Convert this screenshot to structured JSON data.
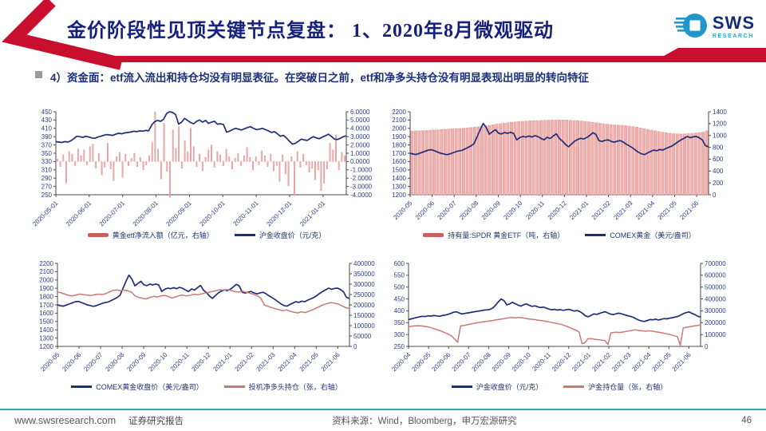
{
  "page": {
    "title": "金价阶段性见顶关键节点复盘：  1、2020年8月微观驱动",
    "subtitle": "4）资金面：etf流入流出和持仓均没有明显表征。在突破日之前，etf和净多头持仓没有明显表现出明显的转向特征",
    "logo": {
      "text": "SWS",
      "subtext": "RESEARCH"
    },
    "footer": {
      "site": "www.swsresearch.com",
      "report_type": "证券研究报告",
      "source": "资料来源：Wind，Bloomberg，申万宏源研究",
      "page_number": "46"
    },
    "colors": {
      "accent_red": "#c8102e",
      "navy": "#15217c",
      "footer_teal": "#35a6b4",
      "bar_fill": "#efb0ae",
      "bar_edge": "#e0908d",
      "line_blue": "#1f2d7b",
      "line_red": "#cb7975",
      "axis_text": "#2b3b85"
    }
  },
  "chart_data": [
    {
      "type": "bar",
      "name": "gold-etf-netflow-vs-shfe-gold",
      "left_axis": {
        "min": 250,
        "max": 450,
        "step": 20,
        "decimals": 0
      },
      "right_axis": {
        "min": -4,
        "max": 6,
        "step": 1,
        "decimals": 4
      },
      "x_labels": [
        "2020-05-01",
        "2020-06-01",
        "2020-07-01",
        "2020-08-01",
        "2020-09-01",
        "2020-10-01",
        "2020-11-01",
        "2020-12-01",
        "2021-01-01"
      ],
      "label_span": 0.92,
      "margins": {
        "mL": 30,
        "mR": 44
      },
      "legend": [
        {
          "label": "黄金etf净流入额（亿元，右轴）",
          "type": "bar",
          "color": "#c9605b"
        },
        {
          "label": "沪金收盘价（元/克）",
          "type": "line",
          "color": "#1f2d7b"
        }
      ],
      "series": [
        {
          "name": "黄金etf净流入额",
          "type": "bar",
          "axis": "right",
          "fill": "#efb0ae",
          "edge": "#e0908d",
          "bar_frac": 0.35,
          "values": [
            0.3,
            -0.6,
            0.8,
            -2.6,
            1.2,
            0.9,
            -0.5,
            1.5,
            0.7,
            1.4,
            -0.4,
            1.8,
            2.1,
            -0.8,
            1.0,
            -1.6,
            -0.7,
            2.2,
            -0.9,
            -2.3,
            0.6,
            1.1,
            -1.9,
            0.9,
            -0.5,
            0.4,
            1.0,
            -0.6,
            0.5,
            -1.0,
            -0.4,
            0.7,
            2.3,
            6.0,
            1.5,
            -2.1,
            4.6,
            -1.2,
            -4.3,
            3.8,
            1.6,
            4.2,
            -0.8,
            2.5,
            1.2,
            4.0,
            1.8,
            -0.6,
            0.9,
            -1.1,
            0.5,
            1.4,
            2.0,
            -0.7,
            1.2,
            0.8,
            -0.5,
            1.5,
            0.6,
            -0.9,
            0.4,
            1.0,
            -0.5,
            0.7,
            1.7,
            0.5,
            -1.0,
            0.6,
            -0.4,
            1.3,
            0.7,
            -0.6,
            0.9,
            -1.1,
            -0.5,
            -2.4,
            0.8,
            -1.5,
            -2.9,
            0.6,
            -4.1,
            1.2,
            -0.7,
            0.9,
            -0.4,
            -1.3,
            -0.8,
            -2.2,
            -1.0,
            -3.5,
            -2.6,
            -0.9,
            2.2,
            1.4,
            3.2,
            -1.0,
            1.1,
            0.7
          ]
        },
        {
          "name": "沪金收盘价",
          "type": "line",
          "axis": "left",
          "color": "#1f2d7b",
          "width": 1.7,
          "values": [
            378,
            377,
            376,
            378,
            377,
            380,
            385,
            391,
            390,
            388,
            391,
            389,
            387,
            386,
            389,
            391,
            393,
            395,
            394,
            393,
            396,
            398,
            397,
            399,
            400,
            401,
            403,
            402,
            404,
            403,
            405,
            404,
            418,
            426,
            429,
            427,
            432,
            446,
            450,
            448,
            443,
            420,
            425,
            434,
            429,
            424,
            421,
            427,
            430,
            425,
            429,
            422,
            425,
            427,
            420,
            421,
            419,
            401,
            403,
            407,
            410,
            408,
            406,
            409,
            412,
            414,
            410,
            407,
            408,
            410,
            407,
            404,
            400,
            402,
            397,
            391,
            393,
            387,
            379,
            372,
            374,
            379,
            384,
            382,
            381,
            386,
            390,
            387,
            385,
            389,
            392,
            396,
            391,
            384,
            383,
            386,
            390,
            392
          ]
        }
      ]
    },
    {
      "type": "bar",
      "name": "spdr-holdings-vs-comex-gold",
      "left_axis": {
        "min": 1200,
        "max": 2200,
        "step": 100,
        "decimals": 0
      },
      "right_axis": {
        "min": 0,
        "max": 1400,
        "step": 200,
        "decimals": 0
      },
      "x_labels": [
        "2020-05",
        "2020-06",
        "2020-07",
        "2020-08",
        "2020-09",
        "2020-10",
        "2020-11",
        "2020-12",
        "2021-01",
        "2021-02",
        "2021-03",
        "2021-04",
        "2021-05",
        "2021-06"
      ],
      "label_span": 0.96,
      "margins": {
        "mL": 32,
        "mR": 32
      },
      "legend": [
        {
          "label": "持有量:SPDR 黄金ETF（吨，右轴）",
          "type": "bar",
          "color": "#c9605b"
        },
        {
          "label": "COMEX黄金（美元/盎司）",
          "type": "line",
          "color": "#1f2d7b"
        }
      ],
      "series": [
        {
          "name": "持有量:SPDR 黄金ETF",
          "type": "bar",
          "axis": "right",
          "fill": "#efb0ae",
          "edge": "#e0908d",
          "bar_frac": 0.72,
          "values": [
            1075,
            1078,
            1080,
            1082,
            1085,
            1088,
            1092,
            1096,
            1100,
            1104,
            1108,
            1112,
            1115,
            1118,
            1122,
            1127,
            1133,
            1140,
            1147,
            1155,
            1163,
            1172,
            1181,
            1190,
            1199,
            1208,
            1216,
            1223,
            1229,
            1234,
            1238,
            1242,
            1246,
            1249,
            1252,
            1254,
            1256,
            1258,
            1260,
            1261,
            1262,
            1261,
            1259,
            1256,
            1252,
            1248,
            1243,
            1237,
            1230,
            1222,
            1213,
            1204,
            1196,
            1189,
            1183,
            1178,
            1174,
            1170,
            1165,
            1158,
            1150,
            1140,
            1128,
            1115,
            1102,
            1090,
            1078,
            1066,
            1055,
            1045,
            1037,
            1030,
            1026,
            1024,
            1026,
            1030,
            1036,
            1042,
            1048,
            1056,
            1078
          ]
        },
        {
          "name": "COMEX黄金",
          "type": "line",
          "axis": "left",
          "color": "#1f2d7b",
          "width": 1.7,
          "values": [
            1700,
            1690,
            1685,
            1698,
            1712,
            1725,
            1738,
            1742,
            1730,
            1715,
            1700,
            1692,
            1683,
            1690,
            1705,
            1718,
            1728,
            1735,
            1752,
            1770,
            1788,
            1815,
            1900,
            1985,
            2060,
            2010,
            1930,
            1958,
            1985,
            1942,
            1932,
            1950,
            1940,
            1952,
            1938,
            1862,
            1888,
            1902,
            1895,
            1908,
            1895,
            1912,
            1900,
            1878,
            1862,
            1892,
            1878,
            1908,
            1935,
            1878,
            1848,
            1808,
            1778,
            1812,
            1845,
            1865,
            1880,
            1872,
            1888,
            1915,
            1948,
            1928,
            1852,
            1842,
            1855,
            1862,
            1843,
            1833,
            1845,
            1852,
            1835,
            1808,
            1788,
            1765,
            1738,
            1712,
            1692,
            1685,
            1705,
            1722,
            1738,
            1730,
            1745,
            1738,
            1758,
            1772,
            1788,
            1812,
            1838,
            1862,
            1882,
            1902,
            1888,
            1898,
            1902,
            1885,
            1858,
            1790,
            1778
          ]
        }
      ]
    },
    {
      "type": "line",
      "name": "comex-gold-vs-spec-net-long",
      "left_axis": {
        "min": 1200,
        "max": 2200,
        "step": 100,
        "decimals": 0
      },
      "right_axis": {
        "min": 0,
        "max": 400000,
        "step": 50000,
        "decimals": 0
      },
      "x_labels": [
        "2020-05",
        "2020-06",
        "2020-07",
        "2020-08",
        "2020-09",
        "2020-10",
        "2020-11",
        "2020-12",
        "2021-01",
        "2021-02",
        "2021-03",
        "2021-04",
        "2021-05",
        "2021-06"
      ],
      "label_span": 0.96,
      "margins": {
        "mL": 32,
        "mR": 40
      },
      "legend": [
        {
          "label": "COMEX黄金收盘价（美元/盎司）",
          "type": "line",
          "color": "#1f2d7b"
        },
        {
          "label": "投机净多头持仓（张，右轴）",
          "type": "line",
          "color": "#cb7975"
        }
      ],
      "series": [
        {
          "name": "COMEX黄金收盘价",
          "type": "line",
          "axis": "left",
          "color": "#1f2d7b",
          "width": 1.7,
          "values": [
            1700,
            1690,
            1685,
            1698,
            1712,
            1725,
            1738,
            1742,
            1730,
            1715,
            1700,
            1692,
            1683,
            1690,
            1705,
            1718,
            1728,
            1735,
            1752,
            1770,
            1788,
            1815,
            1900,
            1985,
            2060,
            2010,
            1930,
            1958,
            1985,
            1942,
            1932,
            1950,
            1940,
            1952,
            1938,
            1862,
            1888,
            1902,
            1895,
            1908,
            1895,
            1912,
            1900,
            1878,
            1862,
            1892,
            1878,
            1908,
            1935,
            1878,
            1848,
            1808,
            1778,
            1812,
            1845,
            1865,
            1880,
            1872,
            1888,
            1915,
            1948,
            1928,
            1852,
            1842,
            1855,
            1862,
            1843,
            1833,
            1845,
            1852,
            1835,
            1808,
            1788,
            1765,
            1738,
            1712,
            1692,
            1685,
            1705,
            1722,
            1738,
            1730,
            1745,
            1738,
            1758,
            1772,
            1788,
            1812,
            1838,
            1862,
            1882,
            1902,
            1888,
            1898,
            1902,
            1885,
            1858,
            1790,
            1778
          ]
        },
        {
          "name": "投机净多头持仓",
          "type": "line",
          "axis": "right",
          "color": "#cb7975",
          "width": 1.5,
          "values": [
            262000,
            258000,
            252000,
            246000,
            243000,
            248000,
            252000,
            250000,
            247000,
            245000,
            249000,
            252000,
            250000,
            254000,
            262000,
            270000,
            272000,
            269000,
            271000,
            268000,
            262000,
            243000,
            236000,
            232000,
            229000,
            236000,
            241000,
            238000,
            243000,
            246000,
            240000,
            233000,
            239000,
            245000,
            247000,
            243000,
            247000,
            251000,
            249000,
            253000,
            257000,
            261000,
            265000,
            269000,
            273000,
            271000,
            274000,
            269000,
            264000,
            262000,
            266000,
            261000,
            257000,
            251000,
            244000,
            233000,
            199000,
            193000,
            187000,
            181000,
            176000,
            172000,
            176000,
            169000,
            165000,
            161000,
            167000,
            163000,
            169000,
            176000,
            185000,
            193000,
            201000,
            207000,
            211000,
            208000,
            204000,
            195000,
            187000,
            182000
          ]
        }
      ]
    },
    {
      "type": "line",
      "name": "shfe-gold-close-vs-open-interest",
      "left_axis": {
        "min": 250,
        "max": 600,
        "step": 50,
        "decimals": 0
      },
      "right_axis": {
        "min": 0,
        "max": 700000,
        "step": 100000,
        "decimals": 0
      },
      "x_labels": [
        "2020-04",
        "2020-05",
        "2020-06",
        "2020-07",
        "2020-08",
        "2020-09",
        "2020-10",
        "2020-11",
        "2020-12",
        "2021-01",
        "2021-02",
        "2021-03",
        "2021-04",
        "2021-05",
        "2021-06"
      ],
      "label_span": 0.96,
      "margins": {
        "mL": 30,
        "mR": 42
      },
      "legend": [
        {
          "label": "沪金收盘价（元/克）",
          "type": "line",
          "color": "#1f2d7b"
        },
        {
          "label": "沪金持仓量（张，右轴）",
          "type": "line",
          "color": "#cb7975"
        }
      ],
      "series": [
        {
          "name": "沪金收盘价",
          "type": "line",
          "axis": "left",
          "color": "#1f2d7b",
          "width": 1.7,
          "values": [
            363,
            366,
            369,
            372,
            375,
            377,
            376,
            379,
            378,
            380,
            379,
            377,
            380,
            382,
            385,
            389,
            394,
            396,
            391,
            387,
            389,
            391,
            393,
            395,
            397,
            399,
            401,
            403,
            404,
            406,
            412,
            424,
            438,
            450,
            443,
            425,
            429,
            436,
            430,
            424,
            420,
            426,
            429,
            423,
            419,
            421,
            417,
            414,
            416,
            412,
            407,
            404,
            406,
            403,
            405,
            402,
            404,
            406,
            403,
            399,
            401,
            397,
            389,
            379,
            375,
            381,
            387,
            385,
            389,
            393,
            396,
            391,
            386,
            384,
            388,
            390,
            387,
            383,
            380,
            377,
            373,
            366,
            361,
            357,
            355,
            359,
            363,
            362,
            365,
            361,
            364,
            367,
            366,
            369,
            371,
            374,
            377,
            383,
            389,
            393,
            395,
            389,
            384,
            377,
            374
          ]
        },
        {
          "name": "沪金持仓量",
          "type": "line",
          "axis": "right",
          "color": "#cb7975",
          "width": 1.5,
          "values": [
            166000,
            169000,
            172000,
            174000,
            173000,
            171000,
            168000,
            163000,
            156000,
            148000,
            140000,
            131000,
            122000,
            112000,
            100000,
            86000,
            60000,
            36000,
            172000,
            176000,
            181000,
            186000,
            191000,
            196000,
            200000,
            204000,
            208000,
            212000,
            215000,
            218000,
            222000,
            226000,
            230000,
            234000,
            238000,
            242000,
            244000,
            241000,
            245000,
            242000,
            238000,
            234000,
            231000,
            228000,
            225000,
            221000,
            217000,
            213000,
            209000,
            204000,
            199000,
            195000,
            190000,
            184000,
            176000,
            167000,
            157000,
            146000,
            134000,
            121000,
            24000,
            30000,
            64000,
            66000,
            62000,
            58000,
            55000,
            52000,
            48000,
            16000,
            114000,
            118000,
            120000,
            117000,
            121000,
            125000,
            129000,
            134000,
            139000,
            137000,
            133000,
            131000,
            128000,
            131000,
            129000,
            125000,
            121000,
            117000,
            113000,
            108000,
            102000,
            96000,
            89000,
            82000,
            10000,
            156000,
            161000,
            165000,
            169000,
            173000,
            177000,
            180000
          ]
        }
      ]
    }
  ]
}
